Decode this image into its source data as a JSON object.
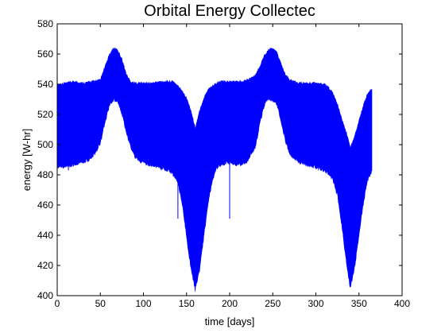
{
  "chart_data": {
    "type": "area",
    "title": "Orbital Energy Collectec",
    "xlabel": "time [days]",
    "ylabel": "energy [W-hr]",
    "xlim": [
      0,
      400
    ],
    "ylim": [
      400,
      580
    ],
    "xticks": [
      0,
      50,
      100,
      150,
      200,
      250,
      300,
      350,
      400
    ],
    "yticks": [
      400,
      420,
      440,
      460,
      480,
      500,
      520,
      540,
      560,
      580
    ],
    "grid": false,
    "colors": {
      "series": "#0000ff",
      "axes": "#000000",
      "background": "#ffffff"
    },
    "series": [
      {
        "x": [
          0,
          10,
          20,
          30,
          40,
          50,
          55,
          60,
          65,
          70,
          75,
          80,
          85,
          90,
          100,
          110,
          120,
          130,
          135,
          140,
          145,
          150,
          155,
          160,
          165,
          170,
          175,
          180,
          185,
          190,
          195,
          200,
          210,
          220,
          230,
          235,
          240,
          245,
          250,
          255,
          260,
          265,
          270,
          280,
          290,
          300,
          310,
          315,
          320,
          325,
          330,
          335,
          340,
          345,
          350,
          355,
          360,
          365
        ],
        "upper": [
          539,
          540,
          541,
          540,
          541,
          542,
          550,
          558,
          563,
          562,
          556,
          546,
          541,
          540,
          540,
          540,
          541,
          541,
          541,
          538,
          535,
          530,
          522,
          510,
          521,
          530,
          536,
          538,
          540,
          541,
          541,
          541,
          541,
          542,
          545,
          551,
          558,
          562,
          563,
          560,
          552,
          545,
          542,
          540,
          540,
          540,
          539,
          537,
          533,
          526,
          516,
          508,
          497,
          505,
          515,
          525,
          533,
          536
        ],
        "lower": [
          486,
          487,
          488,
          490,
          492,
          502,
          515,
          526,
          531,
          530,
          522,
          510,
          500,
          493,
          489,
          488,
          486,
          484,
          481,
          476,
          462,
          440,
          420,
          405,
          418,
          440,
          462,
          478,
          486,
          488,
          489,
          489,
          488,
          490,
          500,
          515,
          527,
          531,
          531,
          528,
          515,
          503,
          495,
          490,
          488,
          486,
          484,
          482,
          478,
          468,
          448,
          425,
          406,
          420,
          442,
          462,
          478,
          484
        ]
      }
    ],
    "outliers": [
      {
        "x": 13,
        "low": 483
      },
      {
        "x": 140,
        "low": 451
      },
      {
        "x": 200,
        "low": 451
      }
    ]
  }
}
